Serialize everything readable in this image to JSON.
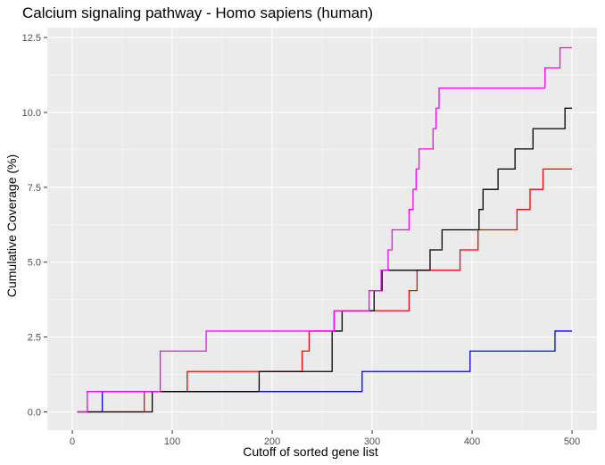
{
  "chart_data": {
    "type": "line",
    "title": "Calcium signaling pathway - Homo sapiens (human)",
    "xlabel": "Cutoff of sorted gene list",
    "ylabel": "Cumulative Coverage (%)",
    "xlim": [
      -25,
      525
    ],
    "ylim": [
      -0.61,
      12.83
    ],
    "xticks": [
      0,
      100,
      200,
      300,
      400,
      500
    ],
    "yticks": [
      0.0,
      2.5,
      5.0,
      7.5,
      10.0,
      12.5
    ],
    "xtick_labels": [
      "0",
      "100",
      "200",
      "300",
      "400",
      "500"
    ],
    "ytick_labels": [
      "0.0",
      "2.5",
      "5.0",
      "7.5",
      "10.0",
      "12.5"
    ],
    "grid": true,
    "legend": "none",
    "step": true,
    "series": [
      {
        "color": "#0000ff",
        "x": [
          5,
          30,
          290,
          398,
          483,
          500
        ],
        "y": [
          0,
          0.68,
          1.35,
          2.03,
          2.7,
          2.7
        ]
      },
      {
        "color": "#ff0000",
        "x": [
          5,
          72,
          115,
          230,
          237,
          262,
          337,
          345,
          388,
          406,
          445,
          458,
          471,
          500
        ],
        "y": [
          0,
          0.68,
          1.35,
          2.03,
          2.7,
          3.38,
          4.05,
          4.73,
          5.41,
          6.08,
          6.76,
          7.43,
          8.11,
          8.11
        ]
      },
      {
        "color": "#000000",
        "x": [
          5,
          80,
          187,
          260,
          270,
          302,
          310,
          358,
          370,
          407,
          411,
          426,
          443,
          461,
          493,
          500
        ],
        "y": [
          0,
          0.68,
          1.35,
          2.7,
          3.38,
          4.05,
          4.73,
          5.41,
          6.08,
          6.76,
          7.43,
          8.11,
          8.78,
          9.46,
          10.14,
          10.14
        ]
      },
      {
        "color": "#ff00ff",
        "x": [
          5,
          15,
          88,
          134,
          262,
          297,
          309,
          316,
          320,
          337,
          341,
          344,
          347,
          361,
          364,
          367,
          369,
          371,
          473,
          488,
          500
        ],
        "y": [
          0,
          0.68,
          2.03,
          2.7,
          3.38,
          4.05,
          4.73,
          5.41,
          6.08,
          6.76,
          7.43,
          8.11,
          8.78,
          9.46,
          10.14,
          10.81,
          10.81,
          10.81,
          11.49,
          12.16,
          12.16
        ]
      }
    ]
  }
}
